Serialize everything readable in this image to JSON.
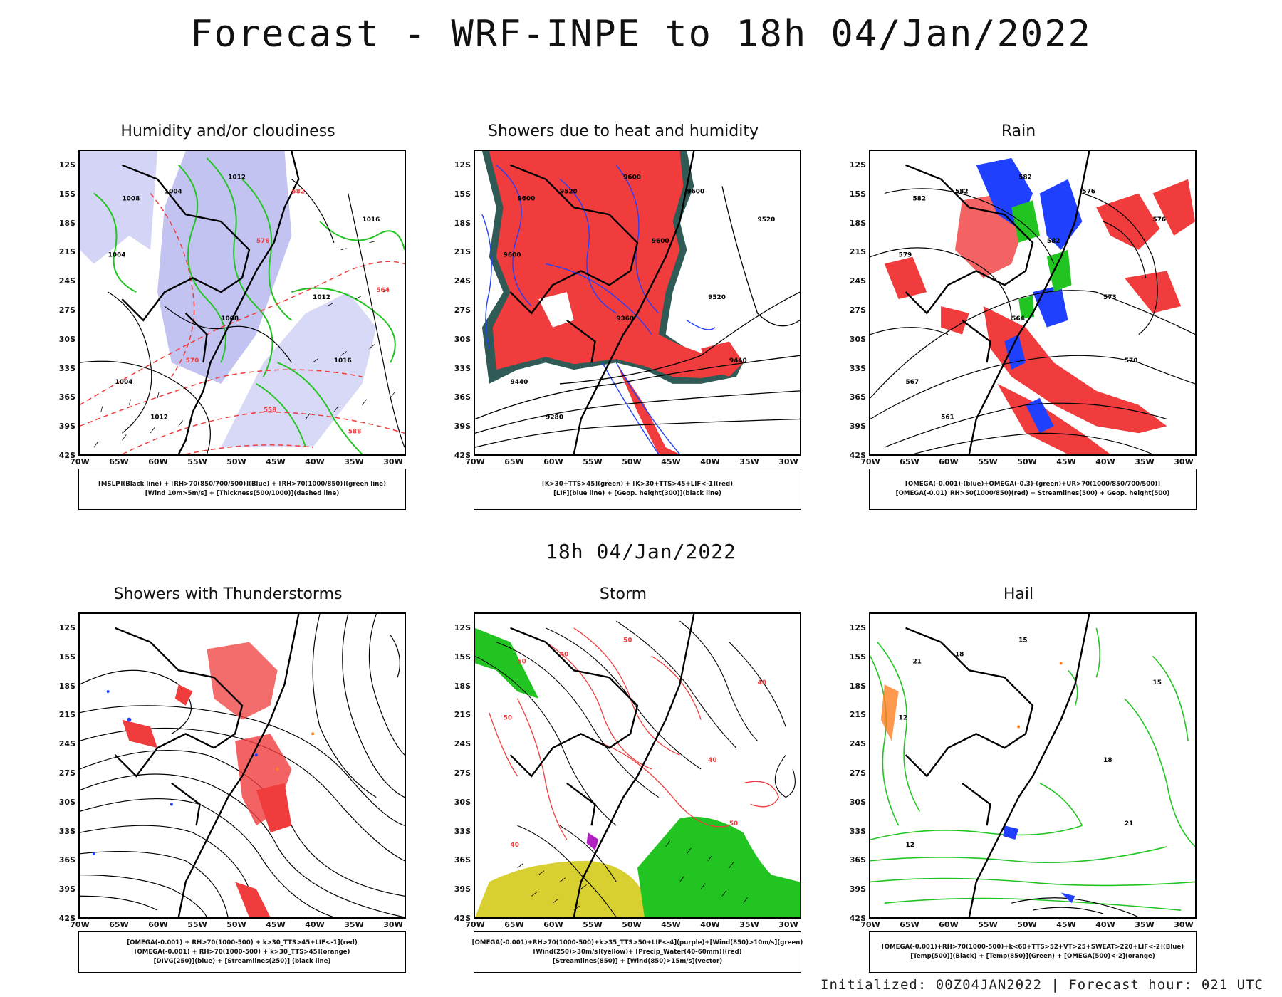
{
  "main_title": "Forecast - WRF-INPE to 18h 04/Jan/2022",
  "mid_title": "18h 04/Jan/2022",
  "footer": "Initialized: 00Z04JAN2022 | Forecast hour: 021 UTC",
  "axes": {
    "lat_labels": [
      "12S",
      "15S",
      "18S",
      "21S",
      "24S",
      "27S",
      "30S",
      "33S",
      "36S",
      "39S",
      "42S"
    ],
    "lon_labels": [
      "70W",
      "65W",
      "60W",
      "55W",
      "50W",
      "45W",
      "40W",
      "35W",
      "30W"
    ]
  },
  "colors": {
    "red": "#f03c3c",
    "blue": "#2040ff",
    "green": "#22c422",
    "lavender": "#b8b8f0",
    "yellow": "#d8d030",
    "darkteal": "#2f5a55",
    "orange": "#ff8020",
    "purple": "#b020c0"
  },
  "panels": [
    {
      "title": "Humidity and/or cloudiness",
      "legend": [
        "[MSLP](Black line) + [RH>70(850/700/500)](Blue) + [RH>70(1000/850)](green line)",
        "[Wind 10m>5m/s] + [Thickness(500/1000)](dashed line)"
      ],
      "labels": [
        "1008",
        "1004",
        "1012",
        "1004",
        "1016",
        "1012",
        "1016",
        "1004",
        "1008",
        "1012",
        "576",
        "582",
        "570",
        "588",
        "564",
        "558"
      ]
    },
    {
      "title": "Showers due to heat and humidity",
      "legend": [
        "[K>30+TTS>45](green) + [K>30+TTS>45+LIF<-1](red)",
        "[LIF](blue line) + [Geop. height(300)](black line)"
      ],
      "labels": [
        "9600",
        "9520",
        "9600",
        "9600",
        "9520",
        "9520",
        "9440",
        "9440",
        "9360",
        "9280",
        "9600",
        "9600"
      ]
    },
    {
      "title": "Rain",
      "legend": [
        "[OMEGA(-0.001)-(blue)+OMEGA(-0.3)-(green)+UR>70(1000/850/700/500)]",
        "[OMEGA(-0.01)_RH>50(1000/850)(red) + Streamlines(500) + Geop. height(500)"
      ],
      "labels": [
        "582",
        "582",
        "582",
        "579",
        "576",
        "573",
        "570",
        "567",
        "564",
        "561",
        "582",
        "576"
      ]
    },
    {
      "title": "Showers with Thunderstorms",
      "legend": [
        "[OMEGA(-0.001) + RH>70(1000-500) + k>30_TTS>45+LIF<-1](red)",
        "[OMEGA(-0.001) + RH>70(1000-500) + k>30_TTS>45](orange)",
        "[DIVG(250)](blue) + [Streamlines(250)] (black line)"
      ],
      "labels": []
    },
    {
      "title": "Storm",
      "legend": [
        "[OMEGA(-0.001)+RH>70(1000-500)+k>35_TTS>50+LIF<-4](purple)+[Wind(850)>10m/s](green)",
        "[Wind(250)>30m/s](yellow)+ [Precip_Water(40-60mm)](red)",
        "[Streamlines(850)] + [Wind(850)>15m/s](vector)"
      ],
      "labels": [
        "50",
        "40",
        "50",
        "50",
        "40",
        "40",
        "50",
        "40"
      ]
    },
    {
      "title": "Hail",
      "legend": [
        "[OMEGA(-0.001)+RH>70(1000-500)+k<60+TTS>52+VT>25+SWEAT>220+LIF<-2](Blue)",
        "[Temp(500)](Black) + [Temp(850)](Green) + [OMEGA(500)<-2](orange)"
      ],
      "labels": [
        "21",
        "18",
        "15",
        "12",
        "15",
        "18",
        "21",
        "12"
      ]
    }
  ]
}
